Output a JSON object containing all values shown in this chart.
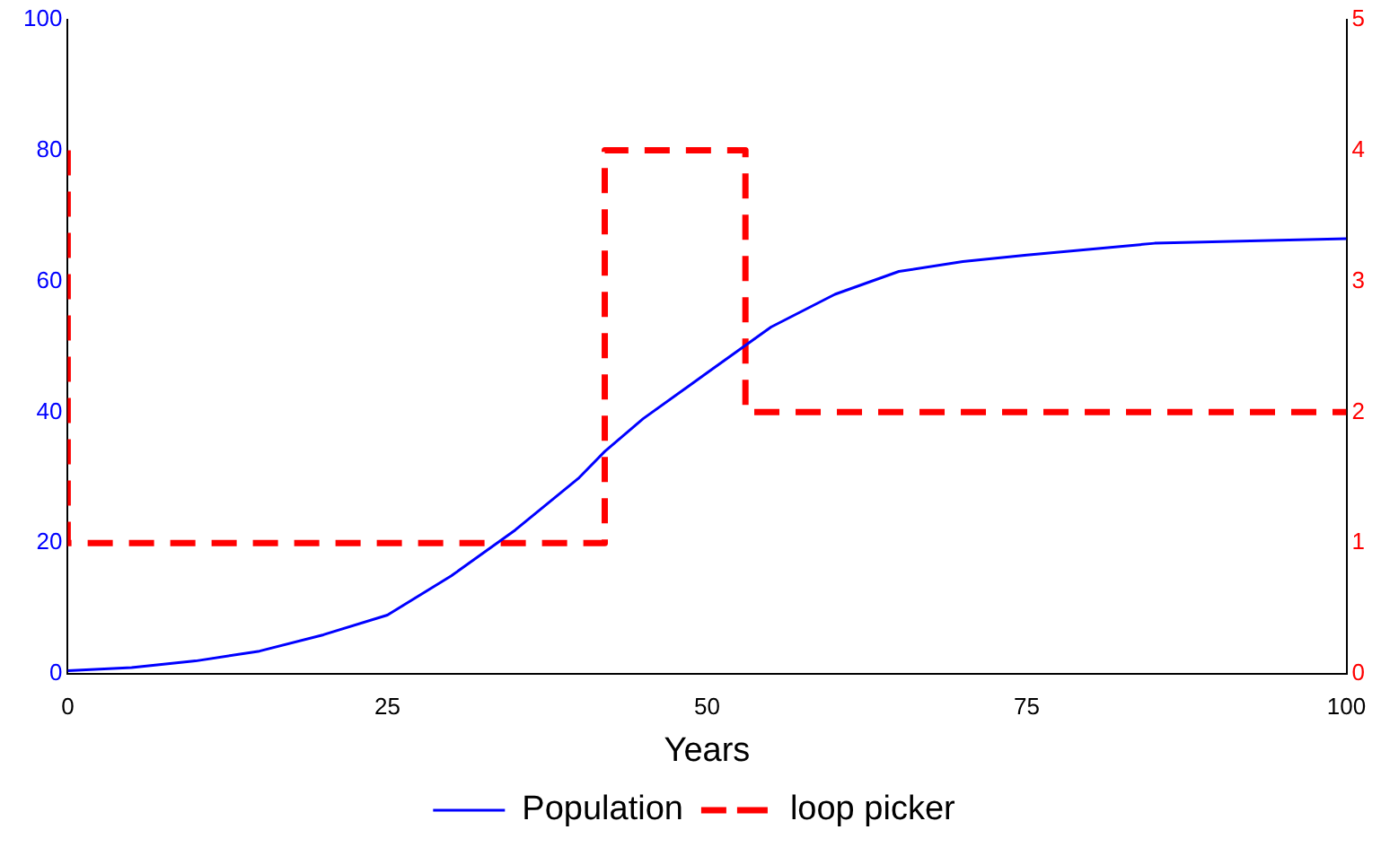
{
  "chart_data": {
    "type": "line",
    "xlabel": "Years",
    "xlim": [
      0,
      100
    ],
    "xticks": [
      0,
      25,
      50,
      75,
      100
    ],
    "ylim": [
      0,
      100
    ],
    "yticks": [
      0,
      20,
      40,
      60,
      80,
      100
    ],
    "y2lim": [
      0,
      5
    ],
    "y2ticks": [
      0,
      1,
      2,
      3,
      4,
      5
    ],
    "grid": false,
    "legend": "bottom",
    "marker": "none",
    "series": [
      {
        "name": "Population",
        "color": "#0000ff",
        "line_style": "solid",
        "x": [
          0,
          5,
          10,
          15,
          20,
          25,
          30,
          35,
          40,
          42,
          45,
          50,
          55,
          60,
          65,
          70,
          75,
          85,
          100
        ],
        "values": [
          0.5,
          1,
          2,
          3.5,
          6,
          9,
          15,
          22,
          30,
          34,
          39,
          46,
          53,
          58,
          61.5,
          63,
          64,
          65.8,
          66.5
        ]
      },
      {
        "name": "loop picker",
        "color": "#ff0000",
        "line_style": "dashed",
        "axis": "y2",
        "x": [
          0,
          0,
          42,
          42,
          53,
          53,
          100
        ],
        "values": [
          4,
          1,
          1,
          4,
          4,
          2,
          2
        ]
      }
    ]
  }
}
